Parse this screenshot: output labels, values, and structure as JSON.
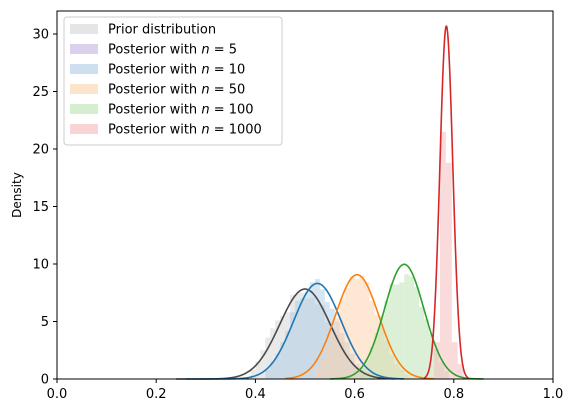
{
  "chart_data": {
    "type": "area",
    "title": "",
    "xlabel": "",
    "ylabel": "Density",
    "xlim": [
      0.0,
      1.0
    ],
    "ylim": [
      0,
      32
    ],
    "x_ticks": [
      {
        "value": 0.0,
        "label": "0.0"
      },
      {
        "value": 0.2,
        "label": "0.2"
      },
      {
        "value": 0.4,
        "label": "0.4"
      },
      {
        "value": 0.6,
        "label": "0.6"
      },
      {
        "value": 0.8,
        "label": "0.8"
      },
      {
        "value": 1.0,
        "label": "1.0"
      }
    ],
    "y_ticks": [
      {
        "value": 0,
        "label": "0"
      },
      {
        "value": 5,
        "label": "5"
      },
      {
        "value": 10,
        "label": "10"
      },
      {
        "value": 15,
        "label": "15"
      },
      {
        "value": 20,
        "label": "20"
      },
      {
        "value": 25,
        "label": "25"
      },
      {
        "value": 30,
        "label": "30"
      }
    ],
    "grid": false,
    "legend_position": "top-left",
    "series": [
      {
        "name": "Prior distribution",
        "legend_parts": {
          "prefix": "Prior distribution",
          "math": "",
          "suffix": ""
        },
        "fill_color": "#d4d4d4",
        "line_color": "#4a4a4a",
        "kde": {
          "mean": 0.5,
          "sd": 0.051,
          "min": 0.24,
          "max": 0.68
        },
        "hist_bins": [
          0.39,
          0.4,
          0.41,
          0.42,
          0.43,
          0.44,
          0.45,
          0.46,
          0.47,
          0.48,
          0.49,
          0.5,
          0.51,
          0.52,
          0.53,
          0.54,
          0.55,
          0.56,
          0.57,
          0.58,
          0.59,
          0.6,
          0.61
        ],
        "hist_heights": [
          0.8,
          1.5,
          2.5,
          3.6,
          4.4,
          5.1,
          5.5,
          5.8,
          7.3,
          7.4,
          7.5,
          7.0,
          7.1,
          6.5,
          6.4,
          4.9,
          4.4,
          3.9,
          3.2,
          2.2,
          1.6,
          1.0,
          0.5
        ]
      },
      {
        "name": "Posterior with n = 5",
        "legend_parts": {
          "prefix": "Posterior with ",
          "math": "n",
          "suffix": " = 5"
        },
        "fill_color": "#c5b3e0",
        "line_color": "#9467bd",
        "kde": null,
        "hist_bins": [],
        "hist_heights": []
      },
      {
        "name": "Posterior with n = 10",
        "legend_parts": {
          "prefix": "Posterior with ",
          "math": "n",
          "suffix": " = 10"
        },
        "fill_color": "#aecbe5",
        "line_color": "#1f77b4",
        "kde": {
          "mean": 0.525,
          "sd": 0.048,
          "min": 0.26,
          "max": 0.7
        },
        "hist_bins": [
          0.42,
          0.43,
          0.44,
          0.45,
          0.46,
          0.47,
          0.48,
          0.49,
          0.5,
          0.51,
          0.52,
          0.53,
          0.54,
          0.55,
          0.56,
          0.57,
          0.58,
          0.59,
          0.6,
          0.61,
          0.62,
          0.63
        ],
        "hist_heights": [
          0.8,
          1.5,
          2.2,
          3.2,
          4.2,
          5.8,
          6.8,
          7.0,
          7.6,
          8.4,
          8.7,
          7.8,
          6.7,
          6.1,
          5.0,
          4.0,
          3.2,
          2.2,
          1.3,
          0.9,
          0.6,
          0.5
        ]
      },
      {
        "name": "Posterior with n = 50",
        "legend_parts": {
          "prefix": "Posterior with ",
          "math": "n",
          "suffix": " = 50"
        },
        "fill_color": "#fdd0a8",
        "line_color": "#ff7f0e",
        "kde": {
          "mean": 0.605,
          "sd": 0.044,
          "min": 0.46,
          "max": 0.76
        },
        "hist_bins": [
          0.52,
          0.53,
          0.54,
          0.55,
          0.56,
          0.57,
          0.58,
          0.59,
          0.6,
          0.61,
          0.62,
          0.63,
          0.64,
          0.65,
          0.66,
          0.67,
          0.68,
          0.69,
          0.7
        ],
        "hist_heights": [
          1.0,
          1.7,
          2.8,
          4.0,
          5.3,
          7.0,
          7.9,
          8.9,
          8.7,
          9.0,
          8.4,
          6.8,
          5.6,
          4.5,
          3.3,
          2.1,
          1.3,
          0.8,
          0.4
        ]
      },
      {
        "name": "Posterior with n = 100",
        "legend_parts": {
          "prefix": "Posterior with ",
          "math": "n",
          "suffix": " = 100"
        },
        "fill_color": "#b9e2b1",
        "line_color": "#2ca02c",
        "kde": {
          "mean": 0.7,
          "sd": 0.04,
          "min": 0.55,
          "max": 0.86
        },
        "hist_bins": [
          0.61,
          0.62,
          0.63,
          0.64,
          0.65,
          0.66,
          0.67,
          0.68,
          0.69,
          0.7,
          0.71,
          0.72,
          0.73,
          0.74,
          0.75,
          0.76,
          0.77,
          0.78
        ],
        "hist_heights": [
          1.0,
          1.7,
          2.8,
          4.0,
          5.5,
          6.8,
          8.3,
          8.2,
          8.4,
          9.1,
          8.9,
          8.0,
          6.3,
          5.2,
          3.9,
          2.6,
          1.5,
          0.7
        ]
      },
      {
        "name": "Posterior with n = 1000",
        "legend_parts": {
          "prefix": "Posterior with ",
          "math": "n",
          "suffix": " = 1000"
        },
        "fill_color": "#f4b7b7",
        "line_color": "#d62728",
        "kde": {
          "mean": 0.785,
          "sd": 0.013,
          "min": 0.74,
          "max": 0.83
        },
        "hist_bins": [
          0.76,
          0.772,
          0.784,
          0.796,
          0.808
        ],
        "hist_heights": [
          3.2,
          21.5,
          18.8,
          3.2,
          1.3
        ]
      }
    ]
  }
}
